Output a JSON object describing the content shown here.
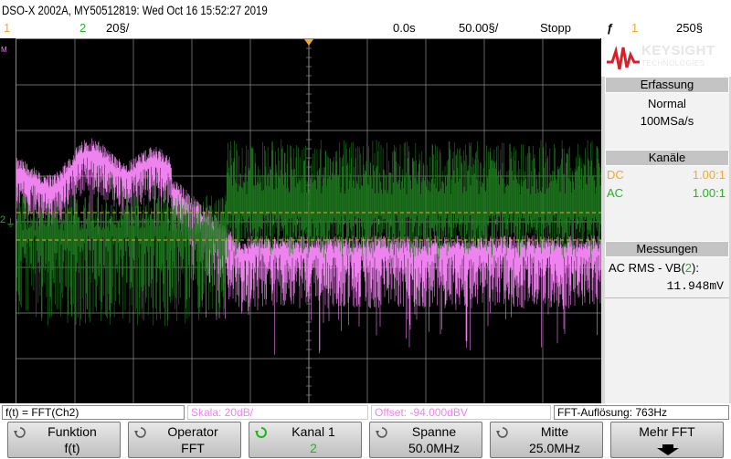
{
  "header": {
    "title": "DSO-X 2002A, MY50512819: Wed Oct 16 15:52:27 2019",
    "ch1_label": "1",
    "ch2_label": "2",
    "ch2_scale": "20§/",
    "time_offset": "0.0s",
    "time_scale": "50.00§/",
    "run_state": "Stopp",
    "trigger_symbol": "ƒ",
    "trigger_channel": "1",
    "trigger_level": "250§"
  },
  "brand": {
    "name": "KEYSIGHT",
    "sub": "TECHNOLOGIES"
  },
  "acquisition": {
    "title": "Erfassung",
    "mode": "Normal",
    "rate": "100MSa/s"
  },
  "channels": {
    "title": "Kanäle",
    "ch1": {
      "coupling": "DC",
      "probe": "1.00:1",
      "color": "#f5a623"
    },
    "ch2": {
      "coupling": "AC",
      "probe": "1.00:1",
      "color": "#22b322"
    }
  },
  "measurements": {
    "title": "Messungen",
    "label_pre": "AC RMS - VB(",
    "label_ch": "2",
    "label_post": "):",
    "value": "11.948mV"
  },
  "info_bar": {
    "function": "f(t) = FFT(Ch2)",
    "scale": "Skala: 20dB/",
    "offset": "Offset: -94.000dBV",
    "resolution": "FFT-Auflösung: 763Hz"
  },
  "softkeys": [
    {
      "label": "Funktion",
      "value": "f(t)"
    },
    {
      "label": "Operator",
      "value": "FFT"
    },
    {
      "label": "Kanal 1",
      "value": "2"
    },
    {
      "label": "Spanne",
      "value": "50.0MHz"
    },
    {
      "label": "Mitte",
      "value": "25.0MHz"
    },
    {
      "label": "Mehr FFT",
      "value": ""
    }
  ],
  "trace_colors": {
    "fft": "#ee82ee",
    "ch2": "#1f7a1f",
    "grid": "#8c8c8c",
    "ch1_marker": "#f5a623"
  }
}
